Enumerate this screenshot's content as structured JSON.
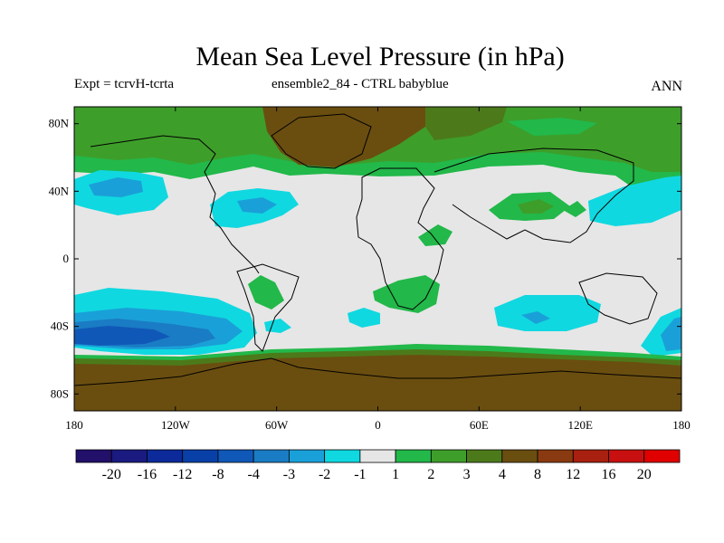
{
  "title": "Mean Sea Level Pressure (in hPa)",
  "subtitle_left": "Expt = tcrvH-tcrta",
  "subtitle_center": "ensemble2_84 - CTRL babyblue",
  "subtitle_right": "ANN",
  "map": {
    "lon_range": [
      -180,
      180
    ],
    "lat_range": [
      -90,
      90
    ],
    "lat_ticks": [
      {
        "value": 80,
        "label": "80N"
      },
      {
        "value": 40,
        "label": "40N"
      },
      {
        "value": 0,
        "label": "0"
      },
      {
        "value": -40,
        "label": "40S"
      },
      {
        "value": -80,
        "label": "80S"
      }
    ],
    "lon_ticks": [
      {
        "value": -180,
        "label": "180"
      },
      {
        "value": -120,
        "label": "120W"
      },
      {
        "value": -60,
        "label": "60W"
      },
      {
        "value": 0,
        "label": "0"
      },
      {
        "value": 60,
        "label": "60E"
      },
      {
        "value": 120,
        "label": "120E"
      },
      {
        "value": 180,
        "label": "180"
      }
    ]
  },
  "colorbar": {
    "levels": [
      "-20",
      "-16",
      "-12",
      "-8",
      "-4",
      "-3",
      "-2",
      "-1",
      "1",
      "2",
      "3",
      "4",
      "8",
      "12",
      "16",
      "20"
    ],
    "colors": [
      "#22106b",
      "#1a1a80",
      "#0c2a9a",
      "#0840a8",
      "#1058b8",
      "#1a7cc4",
      "#1aa0d8",
      "#10d8e0",
      "#e6e6e6",
      "#22b84a",
      "#3e9e2a",
      "#4c7a1a",
      "#6a4e10",
      "#8a3a10",
      "#a82010",
      "#c81010",
      "#e00000"
    ]
  },
  "palette": {
    "neutral": "#e6e6e6",
    "cyan": "#10d8e0",
    "light_blue": "#1aa0d8",
    "mid_blue": "#1a7cc4",
    "blue": "#1058b8",
    "green": "#22b84a",
    "olive": "#3e9e2a",
    "olive_dark": "#4c7a1a",
    "brown": "#6a4e10"
  }
}
